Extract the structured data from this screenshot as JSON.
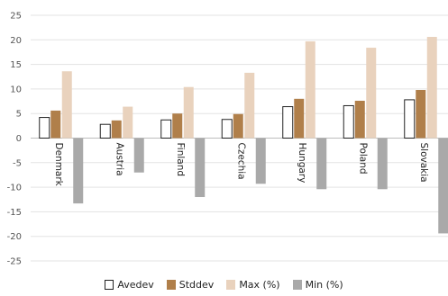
{
  "chart_data": {
    "type": "bar",
    "title": "",
    "xlabel": "",
    "ylabel": "",
    "ylim": [
      -25,
      25
    ],
    "yticks": [
      25,
      20,
      15,
      10,
      5,
      0,
      -5,
      -10,
      -15,
      -20,
      -25
    ],
    "grid": true,
    "legend_position": "bottom",
    "categories": [
      "Denmark",
      "Austria",
      "Finland",
      "Czechia",
      "Hungary",
      "Poland",
      "Slovakia"
    ],
    "series": [
      {
        "name": "Avedev",
        "color": "#ffffff",
        "stroke": "#222222",
        "values": [
          4.2,
          2.8,
          3.7,
          3.8,
          6.4,
          6.6,
          7.8
        ]
      },
      {
        "name": "Stddev",
        "color": "#b07f4a",
        "values": [
          5.6,
          3.6,
          5.0,
          4.9,
          8.0,
          7.6,
          9.8
        ]
      },
      {
        "name": "Max (%)",
        "color": "#e9d2bd",
        "values": [
          13.6,
          6.4,
          10.4,
          13.3,
          19.7,
          18.4,
          20.6
        ]
      },
      {
        "name": "Min (%)",
        "color": "#a9a9a9",
        "values": [
          -13.3,
          -7.0,
          -12.0,
          -9.3,
          -10.4,
          -10.4,
          -19.4
        ]
      }
    ]
  }
}
